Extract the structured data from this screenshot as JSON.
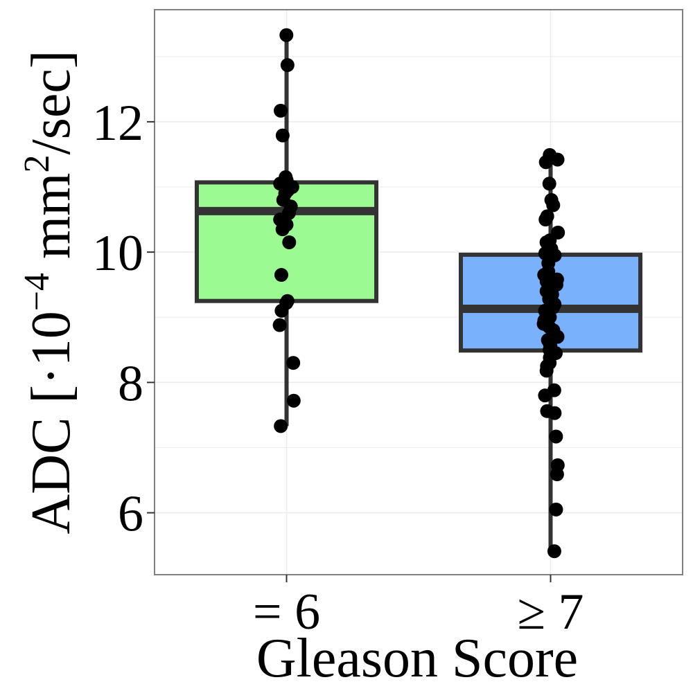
{
  "chart_data": {
    "type": "box",
    "xlabel": "Gleason Score",
    "ylabel_main": "ADC [·10",
    "ylabel_exp1": "−4",
    "ylabel_mid": " mm",
    "ylabel_exp2": "2",
    "ylabel_end": "/sec]",
    "ylim": [
      5.05,
      13.72
    ],
    "yticks": [
      6,
      8,
      10,
      12
    ],
    "ytick_labels": [
      "6",
      "8",
      "10",
      "12"
    ],
    "grid": true,
    "legend": "none",
    "categories": [
      "= 6",
      "≥ 7"
    ],
    "boxes": [
      {
        "category": "= 6",
        "fill": "#9cfa92",
        "q1": 9.25,
        "median": 10.63,
        "q3": 11.07,
        "whisker_low": 7.33,
        "whisker_high": 13.33,
        "points": [
          13.33,
          12.87,
          12.17,
          11.79,
          11.15,
          11.1,
          11.05,
          11.0,
          10.95,
          10.9,
          10.8,
          10.7,
          10.6,
          10.5,
          10.42,
          10.35,
          10.15,
          9.65,
          9.25,
          9.22,
          9.1,
          8.88,
          8.3,
          7.72,
          7.33
        ]
      },
      {
        "category": "≥ 7",
        "fill": "#7ab1fc",
        "q1": 8.49,
        "median": 9.13,
        "q3": 9.96,
        "whisker_low": 5.41,
        "whisker_high": 11.49,
        "points": [
          11.49,
          11.42,
          11.38,
          11.05,
          10.8,
          10.72,
          10.55,
          10.5,
          10.3,
          10.18,
          10.15,
          10.05,
          10.0,
          9.98,
          9.95,
          9.83,
          9.7,
          9.65,
          9.58,
          9.55,
          9.5,
          9.45,
          9.4,
          9.35,
          9.28,
          9.2,
          9.15,
          9.1,
          9.05,
          9.0,
          8.95,
          8.9,
          8.85,
          8.8,
          8.75,
          8.7,
          8.65,
          8.6,
          8.55,
          8.5,
          8.45,
          8.38,
          8.3,
          8.25,
          8.18,
          7.88,
          7.8,
          7.56,
          7.53,
          7.17,
          6.73,
          6.59,
          6.05,
          5.41
        ]
      }
    ],
    "colors": {
      "box_stroke": "#333333",
      "point": "#000000",
      "panel_border": "#7f7f7f",
      "grid": "#ebebeb"
    }
  }
}
